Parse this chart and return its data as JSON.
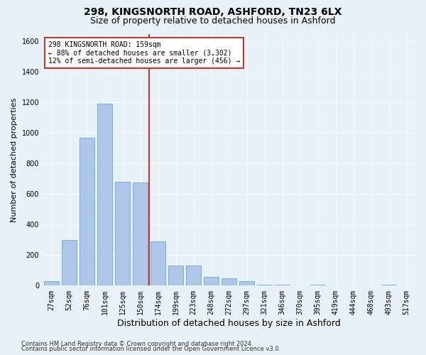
{
  "title": "298, KINGSNORTH ROAD, ASHFORD, TN23 6LX",
  "subtitle": "Size of property relative to detached houses in Ashford",
  "xlabel": "Distribution of detached houses by size in Ashford",
  "ylabel": "Number of detached properties",
  "footnote1": "Contains HM Land Registry data © Crown copyright and database right 2024.",
  "footnote2": "Contains public sector information licensed under the Open Government Licence v3.0.",
  "bar_labels": [
    "27sqm",
    "52sqm",
    "76sqm",
    "101sqm",
    "125sqm",
    "150sqm",
    "174sqm",
    "199sqm",
    "223sqm",
    "248sqm",
    "272sqm",
    "297sqm",
    "321sqm",
    "346sqm",
    "370sqm",
    "395sqm",
    "419sqm",
    "444sqm",
    "468sqm",
    "493sqm",
    "517sqm"
  ],
  "bar_values": [
    30,
    300,
    970,
    1190,
    680,
    675,
    290,
    130,
    130,
    60,
    50,
    30,
    5,
    5,
    0,
    5,
    0,
    0,
    0,
    5,
    0
  ],
  "bar_color": "#aec6e8",
  "bar_edge_color": "#5a9fd4",
  "vline_index": 6,
  "vline_color": "#c0392b",
  "annotation_text": "298 KINGSNORTH ROAD: 159sqm\n← 88% of detached houses are smaller (3,302)\n12% of semi-detached houses are larger (456) →",
  "annotation_box_color": "#c0392b",
  "ylim": [
    0,
    1650
  ],
  "yticks": [
    0,
    200,
    400,
    600,
    800,
    1000,
    1200,
    1400,
    1600
  ],
  "bg_color": "#e8f0f8",
  "plot_bg_color": "#e8f0f8",
  "title_fontsize": 10,
  "subtitle_fontsize": 9,
  "ylabel_fontsize": 8,
  "xlabel_fontsize": 9,
  "tick_fontsize": 7,
  "annotation_fontsize": 7,
  "footnote_fontsize": 6
}
